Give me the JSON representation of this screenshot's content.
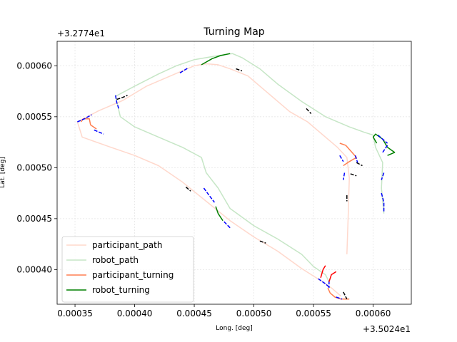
{
  "chart_data": {
    "type": "line",
    "title": "Turning Map",
    "xlabel": "Long. [deg]",
    "ylabel": "Lat. [deg]",
    "x_offset_label": "+3.5024e1",
    "y_offset_label": "+3.2774e1",
    "xlim": [
      0.000335,
      0.000632
    ],
    "ylim": [
      0.000366,
      0.000624
    ],
    "xticks": [
      0.00035,
      0.0004,
      0.00045,
      0.0005,
      0.00055,
      0.0006
    ],
    "xtick_labels": [
      "0.00035",
      "0.00040",
      "0.00045",
      "0.00050",
      "0.00055",
      "0.00060"
    ],
    "yticks": [
      0.0004,
      0.00045,
      0.0005,
      0.00055,
      0.0006
    ],
    "ytick_labels": [
      "0.00040",
      "0.00045",
      "0.00050",
      "0.00055",
      "0.00060"
    ],
    "grid": true,
    "legend_position": "lower-left",
    "colors": {
      "participant_path": "#ffd8cc",
      "robot_path": "#c6e6c6",
      "participant_turning": "#ff7f50",
      "robot_turning": "#008000",
      "blue_marks": "#0000ff",
      "black_marks": "#000000",
      "red_marks": "#ff0000"
    },
    "series": [
      {
        "name": "participant_path",
        "style": "path",
        "color": "#ffd8cc",
        "points": [
          [
            0.000578,
            0.000415
          ],
          [
            0.000579,
            0.00045
          ],
          [
            0.00058,
            0.00049
          ],
          [
            0.000578,
            0.00051
          ],
          [
            0.00057,
            0.00052
          ],
          [
            0.00056,
            0.00053
          ],
          [
            0.000545,
            0.000545
          ],
          [
            0.00053,
            0.000555
          ],
          [
            0.00051,
            0.000575
          ],
          [
            0.000495,
            0.00059
          ],
          [
            0.00048,
            0.000597
          ],
          [
            0.00047,
            0.000601
          ],
          [
            0.00046,
            0.000602
          ],
          [
            0.00045,
            0.0006
          ],
          [
            0.00043,
            0.00059
          ],
          [
            0.00041,
            0.00058
          ],
          [
            0.00039,
            0.000566
          ],
          [
            0.00037,
            0.000556
          ],
          [
            0.000352,
            0.000545
          ],
          [
            0.000356,
            0.00053
          ],
          [
            0.00038,
            0.00052
          ],
          [
            0.0004,
            0.000512
          ],
          [
            0.00042,
            0.000502
          ],
          [
            0.00044,
            0.000486
          ],
          [
            0.00046,
            0.000467
          ],
          [
            0.00048,
            0.000448
          ],
          [
            0.0005,
            0.000432
          ],
          [
            0.00052,
            0.000418
          ],
          [
            0.00054,
            0.000401
          ],
          [
            0.000555,
            0.00039
          ],
          [
            0.000565,
            0.000382
          ],
          [
            0.000573,
            0.000374
          ]
        ]
      },
      {
        "name": "robot_path",
        "style": "path",
        "color": "#c6e6c6",
        "points": [
          [
            0.000609,
            0.000455
          ],
          [
            0.000607,
            0.00048
          ],
          [
            0.000608,
            0.000505
          ],
          [
            0.000602,
            0.00052
          ],
          [
            0.0006,
            0.000532
          ],
          [
            0.000592,
            0.000535
          ],
          [
            0.00058,
            0.00054
          ],
          [
            0.00056,
            0.00055
          ],
          [
            0.00054,
            0.000565
          ],
          [
            0.00052,
            0.000582
          ],
          [
            0.000505,
            0.000597
          ],
          [
            0.00049,
            0.000608
          ],
          [
            0.000482,
            0.000612
          ],
          [
            0.00047,
            0.00061
          ],
          [
            0.00045,
            0.000606
          ],
          [
            0.000435,
            0.0006
          ],
          [
            0.00042,
            0.000592
          ],
          [
            0.0004,
            0.00058
          ],
          [
            0.000384,
            0.00057
          ],
          [
            0.000388,
            0.00055
          ],
          [
            0.0004,
            0.00054
          ],
          [
            0.00042,
            0.00053
          ],
          [
            0.00044,
            0.00052
          ],
          [
            0.000456,
            0.00051
          ],
          [
            0.00046,
            0.000495
          ],
          [
            0.00047,
            0.00048
          ],
          [
            0.00048,
            0.00046
          ],
          [
            0.0005,
            0.000443
          ],
          [
            0.00052,
            0.00043
          ],
          [
            0.00054,
            0.000415
          ],
          [
            0.00055,
            0.000403
          ],
          [
            0.00056,
            0.000395
          ],
          [
            0.000563,
            0.000388
          ]
        ]
      },
      {
        "name": "participant_turning",
        "style": "segments",
        "color": "#ff7f50",
        "segments": [
          [
            [
              0.000355,
              0.000545
            ],
            [
              0.000357,
              0.000548
            ],
            [
              0.000362,
              0.000548
            ],
            [
              0.000363,
              0.000542
            ],
            [
              0.000368,
              0.000538
            ]
          ],
          [
            [
              0.000572,
              0.000524
            ],
            [
              0.000577,
              0.000522
            ],
            [
              0.00058,
              0.000518
            ],
            [
              0.000583,
              0.000514
            ],
            [
              0.000586,
              0.00051
            ],
            [
              0.00058,
              0.000506
            ],
            [
              0.000575,
              0.000502
            ]
          ],
          [
            [
              0.000562,
              0.000382
            ],
            [
              0.000564,
              0.000377
            ],
            [
              0.000568,
              0.000373
            ],
            [
              0.000573,
              0.000371
            ],
            [
              0.00058,
              0.000371
            ]
          ]
        ]
      },
      {
        "name": "robot_turning",
        "style": "segments",
        "color": "#008000",
        "segments": [
          [
            [
              0.000456,
              0.000601
            ],
            [
              0.000465,
              0.000607
            ],
            [
              0.000472,
              0.00061
            ],
            [
              0.00048,
              0.000612
            ]
          ],
          [
            [
              0.000468,
              0.000462
            ],
            [
              0.00047,
              0.000455
            ],
            [
              0.000474,
              0.000448
            ]
          ],
          [
            [
              0.000603,
              0.000524
            ],
            [
              0.0006,
              0.00053
            ],
            [
              0.000602,
              0.000533
            ],
            [
              0.000608,
              0.000528
            ],
            [
              0.000612,
              0.00052
            ],
            [
              0.000618,
              0.000515
            ],
            [
              0.000612,
              0.000512
            ]
          ]
        ]
      },
      {
        "name": "",
        "style": "segments",
        "color": "#0000ff",
        "segments": [
          [
            [
              0.000352,
              0.000545
            ],
            [
              0.000358,
              0.000548
            ],
            [
              0.000364,
              0.000552
            ]
          ],
          [
            [
              0.000366,
              0.000537
            ],
            [
              0.00037,
              0.000535
            ],
            [
              0.000374,
              0.000533
            ]
          ],
          [
            [
              0.000384,
              0.000571
            ],
            [
              0.000385,
              0.000564
            ],
            [
              0.000387,
              0.000557
            ]
          ],
          [
            [
              0.000438,
              0.000593
            ],
            [
              0.000445,
              0.000598
            ]
          ],
          [
            [
              0.000458,
              0.00048
            ],
            [
              0.000463,
              0.000472
            ],
            [
              0.000467,
              0.000466
            ]
          ],
          [
            [
              0.000475,
              0.000447
            ],
            [
              0.00048,
              0.000441
            ]
          ],
          [
            [
              0.000572,
              0.000512
            ],
            [
              0.000575,
              0.000506
            ]
          ],
          [
            [
              0.000576,
              0.000495
            ],
            [
              0.000575,
              0.000488
            ]
          ],
          [
            [
              0.000585,
              0.000512
            ],
            [
              0.000587,
              0.000505
            ]
          ],
          [
            [
              0.000609,
              0.000495
            ],
            [
              0.000607,
              0.000488
            ]
          ],
          [
            [
              0.000607,
              0.000475
            ],
            [
              0.000609,
              0.000466
            ],
            [
              0.000609,
              0.000456
            ]
          ],
          [
            [
              0.000612,
              0.000522
            ],
            [
              0.000608,
              0.000515
            ]
          ],
          [
            [
              0.000604,
              0.000532
            ],
            [
              0.000612,
              0.000524
            ]
          ],
          [
            [
              0.000554,
              0.000391
            ],
            [
              0.00056,
              0.000386
            ],
            [
              0.000563,
              0.000383
            ]
          ],
          [
            [
              0.000563,
              0.000389
            ],
            [
              0.000563,
              0.000382
            ]
          ],
          [
            [
              0.000569,
              0.000373
            ],
            [
              0.000574,
              0.000371
            ]
          ]
        ]
      },
      {
        "name": "",
        "style": "segments",
        "color": "#000000",
        "segments": [
          [
            [
              0.000385,
              0.000567
            ],
            [
              0.00039,
              0.000569
            ],
            [
              0.000394,
              0.000571
            ]
          ],
          [
            [
              0.000485,
              0.000597
            ],
            [
              0.00049,
              0.000595
            ]
          ],
          [
            [
              0.000443,
              0.000481
            ],
            [
              0.000447,
              0.000477
            ]
          ],
          [
            [
              0.000505,
              0.000428
            ],
            [
              0.00051,
              0.000426
            ]
          ],
          [
            [
              0.000544,
              0.000558
            ],
            [
              0.000548,
              0.000553
            ]
          ],
          [
            [
              0.000578,
              0.000473
            ],
            [
              0.000578,
              0.000467
            ]
          ],
          [
            [
              0.000586,
              0.000505
            ],
            [
              0.000591,
              0.000502
            ]
          ],
          [
            [
              0.000581,
              0.000494
            ],
            [
              0.000586,
              0.000492
            ]
          ],
          [
            [
              0.000575,
              0.000378
            ],
            [
              0.000578,
              0.000371
            ]
          ]
        ]
      },
      {
        "name": "",
        "style": "segments",
        "color": "#ff0000",
        "segments": [
          [
            [
              0.000556,
              0.000392
            ],
            [
              0.000558,
              0.0004
            ],
            [
              0.00056,
              0.000404
            ]
          ],
          [
            [
              0.000563,
              0.000388
            ],
            [
              0.000565,
              0.000395
            ],
            [
              0.000569,
              0.000398
            ]
          ]
        ]
      }
    ]
  }
}
